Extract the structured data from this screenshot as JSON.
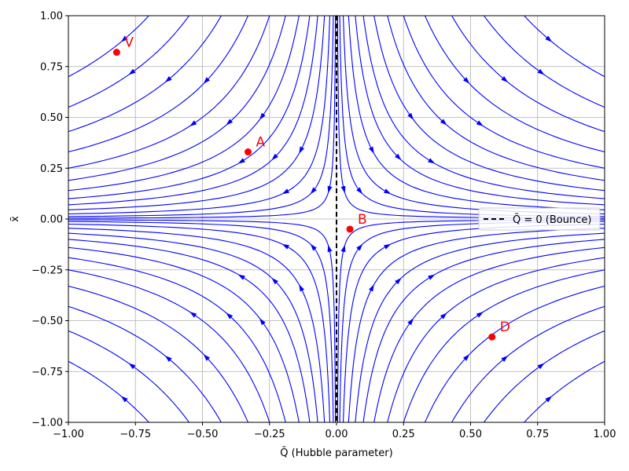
{
  "chart_data": {
    "type": "scatter",
    "title": "",
    "xlabel": "Q̄ (Hubble parameter)",
    "ylabel": "x̄",
    "xlim": [
      -1.0,
      1.0
    ],
    "ylim": [
      -1.0,
      1.0
    ],
    "grid": true,
    "x_ticks": [
      "−1.00",
      "−0.75",
      "−0.50",
      "−0.25",
      "0.00",
      "0.25",
      "0.50",
      "0.75",
      "1.00"
    ],
    "y_ticks": [
      "−1.00",
      "−0.75",
      "−0.50",
      "−0.25",
      "0.00",
      "0.25",
      "0.50",
      "0.75",
      "1.00"
    ],
    "x_tick_values": [
      -1.0,
      -0.75,
      -0.5,
      -0.25,
      0.0,
      0.25,
      0.5,
      0.75,
      1.0
    ],
    "y_tick_values": [
      -1.0,
      -0.75,
      -0.5,
      -0.25,
      0.0,
      0.25,
      0.5,
      0.75,
      1.0
    ],
    "bounce_line": {
      "x": 0.0,
      "label": "Q̄ = 0 (Bounce)",
      "style": "dashed",
      "color": "#000000"
    },
    "legend": {
      "position": "right",
      "entries": [
        "Q̄ = 0 (Bounce)"
      ]
    },
    "stream_color": "#0000ff",
    "points": [
      {
        "name": "V",
        "x": -0.82,
        "y": 0.82
      },
      {
        "name": "A",
        "x": -0.33,
        "y": 0.33
      },
      {
        "name": "B",
        "x": 0.05,
        "y": -0.05
      },
      {
        "name": "D",
        "x": 0.58,
        "y": -0.58
      }
    ],
    "point_color": "#ff0000"
  }
}
